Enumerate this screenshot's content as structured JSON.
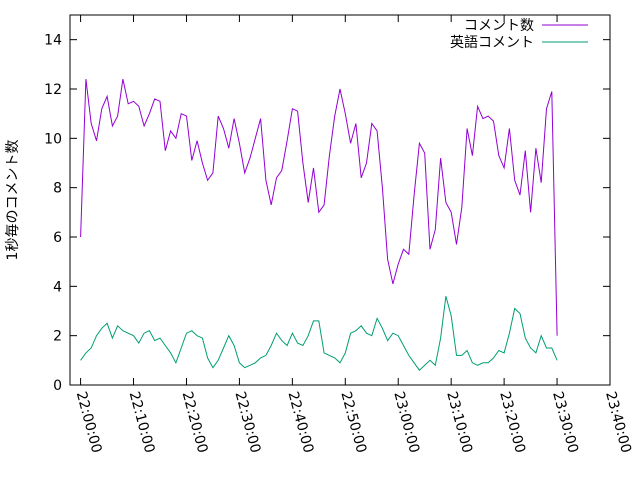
{
  "chart_data": {
    "type": "line",
    "ylabel": "1秒毎のコメント数",
    "x": [
      "22:00:00",
      "22:01:00",
      "22:02:00",
      "22:03:00",
      "22:04:00",
      "22:05:00",
      "22:06:00",
      "22:07:00",
      "22:08:00",
      "22:09:00",
      "22:10:00",
      "22:11:00",
      "22:12:00",
      "22:13:00",
      "22:14:00",
      "22:15:00",
      "22:16:00",
      "22:17:00",
      "22:18:00",
      "22:19:00",
      "22:20:00",
      "22:21:00",
      "22:22:00",
      "22:23:00",
      "22:24:00",
      "22:25:00",
      "22:26:00",
      "22:27:00",
      "22:28:00",
      "22:29:00",
      "22:30:00",
      "22:31:00",
      "22:32:00",
      "22:33:00",
      "22:34:00",
      "22:35:00",
      "22:36:00",
      "22:37:00",
      "22:38:00",
      "22:39:00",
      "22:40:00",
      "22:41:00",
      "22:42:00",
      "22:43:00",
      "22:44:00",
      "22:45:00",
      "22:46:00",
      "22:47:00",
      "22:48:00",
      "22:49:00",
      "22:50:00",
      "22:51:00",
      "22:52:00",
      "22:53:00",
      "22:54:00",
      "22:55:00",
      "22:56:00",
      "22:57:00",
      "22:58:00",
      "22:59:00",
      "23:00:00",
      "23:01:00",
      "23:02:00",
      "23:03:00",
      "23:04:00",
      "23:05:00",
      "23:06:00",
      "23:07:00",
      "23:08:00",
      "23:09:00",
      "23:10:00",
      "23:11:00",
      "23:12:00",
      "23:13:00",
      "23:14:00",
      "23:15:00",
      "23:16:00",
      "23:17:00",
      "23:18:00",
      "23:19:00",
      "23:20:00",
      "23:21:00",
      "23:22:00",
      "23:23:00",
      "23:24:00",
      "23:25:00",
      "23:26:00",
      "23:27:00",
      "23:28:00",
      "23:29:00",
      "23:30:00"
    ],
    "series": [
      {
        "name": "コメント数",
        "color": "#9400d3",
        "values": [
          6.0,
          12.4,
          10.6,
          9.9,
          11.2,
          11.7,
          10.5,
          10.9,
          12.4,
          11.4,
          11.5,
          11.3,
          10.5,
          11.0,
          11.6,
          11.5,
          9.5,
          10.3,
          10.0,
          11.0,
          10.9,
          9.1,
          9.9,
          9.0,
          8.3,
          8.6,
          10.9,
          10.4,
          9.6,
          10.8,
          9.8,
          8.6,
          9.2,
          10.0,
          10.8,
          8.3,
          7.3,
          8.4,
          8.7,
          9.9,
          11.2,
          11.1,
          9.0,
          7.4,
          8.8,
          7.0,
          7.3,
          9.3,
          10.9,
          12.0,
          11.0,
          9.8,
          10.6,
          8.4,
          9.0,
          10.6,
          10.3,
          8.0,
          5.1,
          4.1,
          4.9,
          5.5,
          5.3,
          7.7,
          9.8,
          9.4,
          5.5,
          6.3,
          9.2,
          7.4,
          7.0,
          5.7,
          7.2,
          10.4,
          9.3,
          11.3,
          10.8,
          10.9,
          10.7,
          9.3,
          8.8,
          10.4,
          8.3,
          7.7,
          9.5,
          7.0,
          9.6,
          8.2,
          11.2,
          11.9,
          2.0
        ]
      },
      {
        "name": "英語コメント",
        "color": "#009e73",
        "values": [
          1.0,
          1.3,
          1.5,
          2.0,
          2.3,
          2.5,
          1.9,
          2.4,
          2.2,
          2.1,
          2.0,
          1.7,
          2.1,
          2.2,
          1.8,
          1.9,
          1.6,
          1.3,
          0.9,
          1.5,
          2.1,
          2.2,
          2.0,
          1.9,
          1.1,
          0.7,
          1.0,
          1.5,
          2.0,
          1.6,
          0.9,
          0.7,
          0.8,
          0.9,
          1.1,
          1.2,
          1.6,
          2.1,
          1.8,
          1.6,
          2.1,
          1.7,
          1.6,
          2.0,
          2.6,
          2.6,
          1.3,
          1.2,
          1.1,
          0.9,
          1.3,
          2.1,
          2.2,
          2.4,
          2.1,
          2.0,
          2.7,
          2.3,
          1.8,
          2.1,
          2.0,
          1.6,
          1.2,
          0.9,
          0.6,
          0.8,
          1.0,
          0.8,
          1.9,
          3.6,
          2.8,
          1.2,
          1.2,
          1.4,
          0.9,
          0.8,
          0.9,
          0.9,
          1.1,
          1.4,
          1.3,
          2.1,
          3.1,
          2.9,
          1.9,
          1.5,
          1.3,
          2.0,
          1.5,
          1.5,
          1.0
        ]
      }
    ],
    "xlim": [
      "21:58:00",
      "23:40:00"
    ],
    "xticks": [
      "22:00:00",
      "22:10:00",
      "22:20:00",
      "22:30:00",
      "22:40:00",
      "22:50:00",
      "23:00:00",
      "23:10:00",
      "23:20:00",
      "23:30:00",
      "23:40:00"
    ],
    "ylim": [
      0,
      15
    ],
    "yticks": [
      0,
      2,
      4,
      6,
      8,
      10,
      12,
      14
    ],
    "legend": "top-right"
  }
}
